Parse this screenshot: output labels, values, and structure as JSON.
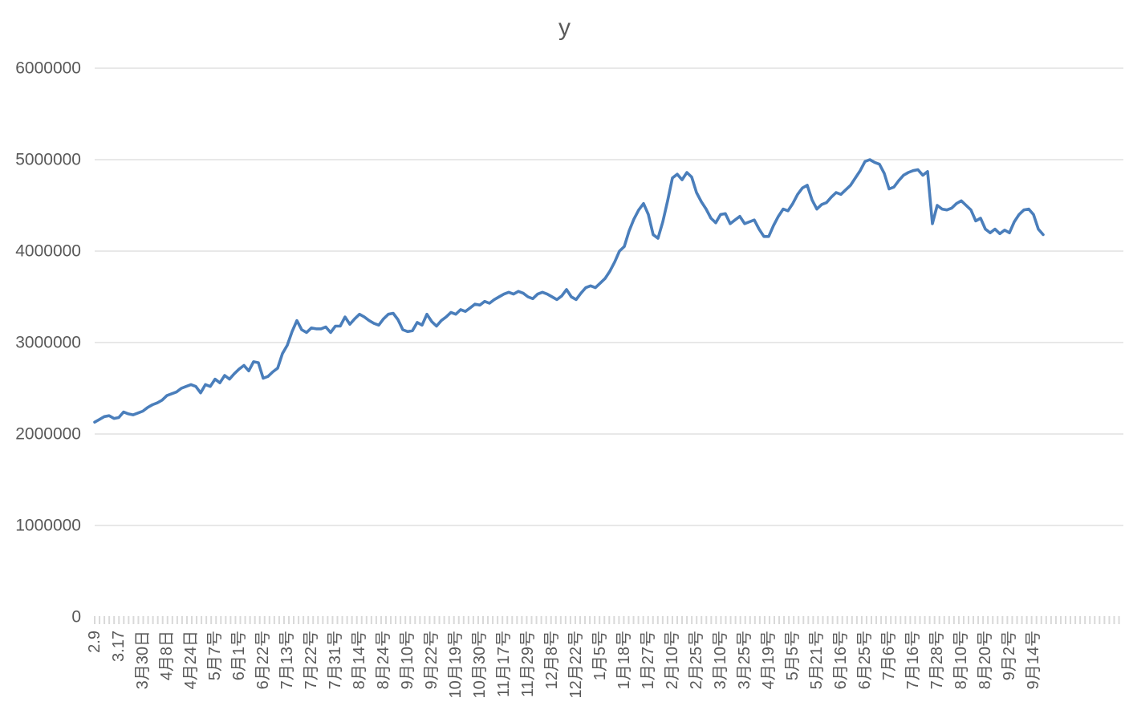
{
  "chart_data": {
    "type": "line",
    "title": "y",
    "xlabel": "",
    "ylabel": "",
    "ylim": [
      0,
      6000000
    ],
    "yticks": [
      "6000000",
      "5000000",
      "4000000",
      "3000000",
      "2000000",
      "1000000",
      "0"
    ],
    "grid": true,
    "legend": "none",
    "x_labels_rotated_degrees": 90,
    "points_per_category_label": 5,
    "n_points": 198,
    "categories": [
      "2.9",
      "3.17",
      "3月30日",
      "4月8日",
      "4月24日",
      "5月7号",
      "6月1号",
      "6月22号",
      "7月13号",
      "7月22号",
      "7月31号",
      "8月14号",
      "8月24号",
      "9月10号",
      "9月22号",
      "10月19号",
      "10月30号",
      "11月17号",
      "11月29号",
      "12月8号",
      "12月22号",
      "1月5号",
      "1月18号",
      "1月27号",
      "2月10号",
      "2月25号",
      "3月10号",
      "3月25号",
      "4月19号",
      "5月5号",
      "5月21号",
      "6月16号",
      "6月25号",
      "7月6号",
      "7月16号",
      "7月28号",
      "8月10号",
      "8月20号",
      "9月2号",
      "9月14号"
    ],
    "series": [
      {
        "name": "y",
        "values": [
          2130000,
          2160000,
          2190000,
          2200000,
          2170000,
          2180000,
          2240000,
          2220000,
          2210000,
          2230000,
          2250000,
          2290000,
          2320000,
          2340000,
          2370000,
          2420000,
          2440000,
          2460000,
          2500000,
          2520000,
          2540000,
          2520000,
          2450000,
          2540000,
          2520000,
          2600000,
          2560000,
          2640000,
          2600000,
          2660000,
          2710000,
          2750000,
          2690000,
          2790000,
          2780000,
          2610000,
          2630000,
          2680000,
          2720000,
          2880000,
          2970000,
          3120000,
          3240000,
          3140000,
          3110000,
          3160000,
          3150000,
          3150000,
          3170000,
          3110000,
          3180000,
          3180000,
          3280000,
          3200000,
          3260000,
          3310000,
          3280000,
          3240000,
          3210000,
          3190000,
          3260000,
          3310000,
          3320000,
          3250000,
          3140000,
          3120000,
          3130000,
          3220000,
          3190000,
          3310000,
          3230000,
          3180000,
          3240000,
          3280000,
          3330000,
          3310000,
          3360000,
          3340000,
          3380000,
          3420000,
          3410000,
          3450000,
          3430000,
          3470000,
          3500000,
          3530000,
          3550000,
          3530000,
          3560000,
          3540000,
          3500000,
          3480000,
          3530000,
          3550000,
          3530000,
          3500000,
          3470000,
          3510000,
          3580000,
          3500000,
          3470000,
          3540000,
          3600000,
          3620000,
          3600000,
          3650000,
          3700000,
          3780000,
          3880000,
          4000000,
          4050000,
          4220000,
          4350000,
          4450000,
          4520000,
          4400000,
          4180000,
          4140000,
          4320000,
          4550000,
          4800000,
          4840000,
          4780000,
          4860000,
          4810000,
          4640000,
          4540000,
          4460000,
          4360000,
          4310000,
          4400000,
          4410000,
          4300000,
          4340000,
          4380000,
          4300000,
          4320000,
          4340000,
          4240000,
          4160000,
          4160000,
          4280000,
          4380000,
          4460000,
          4440000,
          4520000,
          4620000,
          4690000,
          4720000,
          4560000,
          4460000,
          4510000,
          4530000,
          4590000,
          4640000,
          4620000,
          4670000,
          4720000,
          4800000,
          4880000,
          4980000,
          5000000,
          4970000,
          4950000,
          4850000,
          4680000,
          4700000,
          4770000,
          4830000,
          4860000,
          4880000,
          4890000,
          4830000,
          4870000,
          4300000,
          4500000,
          4460000,
          4450000,
          4470000,
          4520000,
          4550000,
          4500000,
          4450000,
          4330000,
          4360000,
          4240000,
          4200000,
          4240000,
          4190000,
          4230000,
          4200000,
          4320000,
          4400000,
          4450000,
          4460000,
          4400000,
          4240000,
          4180000
        ]
      }
    ],
    "colors": {
      "series": "#4A7EBB",
      "gridline": "#D9D9D9",
      "axis_text": "#595959",
      "title_text": "#595959",
      "background": "#FFFFFF"
    }
  }
}
